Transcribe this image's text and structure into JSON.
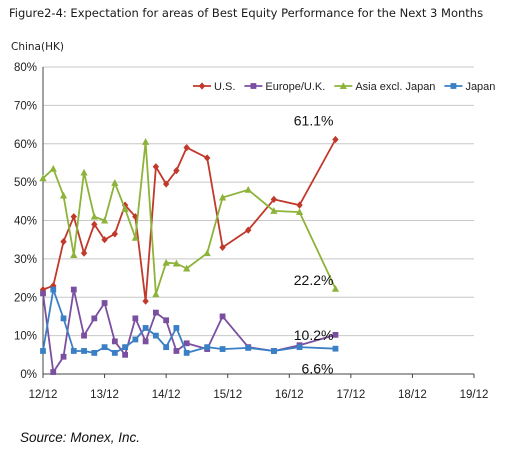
{
  "chart_data": {
    "type": "line",
    "title": "Figure2-4: Expectation for areas of Best Equity Performance for the Next 3 Months",
    "ytitle": "China(HK)",
    "source": "Source: Monex,  Inc.",
    "ylim": [
      0,
      80
    ],
    "yticks": [
      "0%",
      "10%",
      "20%",
      "30%",
      "40%",
      "50%",
      "60%",
      "70%",
      "80%"
    ],
    "xticks": [
      "12/12",
      "13/12",
      "14/12",
      "15/12",
      "16/12",
      "17/12",
      "18/12",
      "19/12"
    ],
    "xlim": [
      0,
      84
    ],
    "grid": true,
    "legend_position": "top-right",
    "annotations": [
      {
        "text": "61.1%",
        "series": 0
      },
      {
        "text": "22.2%",
        "series": 2
      },
      {
        "text": "10.2%",
        "series": 1
      },
      {
        "text": "6.6%",
        "series": 3
      }
    ],
    "series": [
      {
        "name": "U.S.",
        "color": "#c0392b",
        "marker": "diamond",
        "points": [
          [
            0,
            22
          ],
          [
            2,
            23
          ],
          [
            4,
            34.5
          ],
          [
            6,
            41
          ],
          [
            8,
            31.5
          ],
          [
            10,
            39
          ],
          [
            12,
            35
          ],
          [
            14,
            36.5
          ],
          [
            16,
            44
          ],
          [
            18,
            41
          ],
          [
            20,
            19
          ],
          [
            22,
            54
          ],
          [
            24,
            49.5
          ],
          [
            26,
            53
          ],
          [
            28,
            59
          ],
          [
            32,
            56.3
          ],
          [
            35,
            33
          ],
          [
            40,
            37.5
          ],
          [
            45,
            45.5
          ],
          [
            50,
            44
          ],
          [
            57,
            61.1
          ]
        ]
      },
      {
        "name": "Europe/U.K.",
        "color": "#7b4fa0",
        "marker": "square",
        "points": [
          [
            0,
            21
          ],
          [
            2,
            0.5
          ],
          [
            4,
            4.5
          ],
          [
            6,
            22
          ],
          [
            8,
            10
          ],
          [
            10,
            14.5
          ],
          [
            12,
            18.5
          ],
          [
            14,
            8.5
          ],
          [
            16,
            5
          ],
          [
            18,
            14.5
          ],
          [
            20,
            8.5
          ],
          [
            22,
            16
          ],
          [
            24,
            14
          ],
          [
            26,
            6
          ],
          [
            28,
            8
          ],
          [
            32,
            6.5
          ],
          [
            35,
            15
          ],
          [
            40,
            7
          ],
          [
            45,
            6
          ],
          [
            50,
            7.5
          ],
          [
            57,
            10.2
          ]
        ]
      },
      {
        "name": "Asia excl. Japan",
        "color": "#8db33a",
        "marker": "triangle",
        "points": [
          [
            0,
            51
          ],
          [
            2,
            53.5
          ],
          [
            4,
            46.5
          ],
          [
            6,
            31
          ],
          [
            8,
            52.5
          ],
          [
            10,
            41
          ],
          [
            12,
            40
          ],
          [
            14,
            49.8
          ],
          [
            16,
            43
          ],
          [
            18,
            35.5
          ],
          [
            20,
            60.5
          ],
          [
            22,
            20.8
          ],
          [
            24,
            29
          ],
          [
            26,
            28.8
          ],
          [
            28,
            27.5
          ],
          [
            32,
            31.5
          ],
          [
            35,
            46
          ],
          [
            40,
            48
          ],
          [
            45,
            42.5
          ],
          [
            50,
            42.2
          ],
          [
            57,
            22.2
          ]
        ]
      },
      {
        "name": "Japan",
        "color": "#3b7fc4",
        "marker": "square",
        "points": [
          [
            0,
            6
          ],
          [
            2,
            22
          ],
          [
            4,
            14.5
          ],
          [
            6,
            6
          ],
          [
            8,
            6
          ],
          [
            10,
            5.5
          ],
          [
            12,
            7
          ],
          [
            14,
            5.5
          ],
          [
            16,
            7
          ],
          [
            18,
            9
          ],
          [
            20,
            12
          ],
          [
            22,
            10
          ],
          [
            24,
            7
          ],
          [
            26,
            12
          ],
          [
            28,
            5.5
          ],
          [
            32,
            7
          ],
          [
            35,
            6.5
          ],
          [
            40,
            6.8
          ],
          [
            45,
            6
          ],
          [
            50,
            7
          ],
          [
            57,
            6.6
          ]
        ]
      }
    ]
  }
}
